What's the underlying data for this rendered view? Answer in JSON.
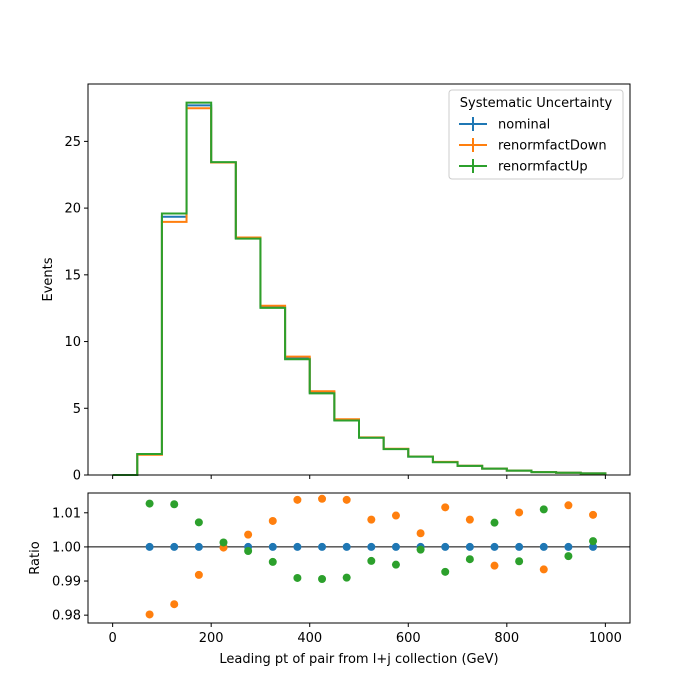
{
  "chart_data": [
    {
      "type": "step",
      "panel": "main",
      "ylabel": "Events",
      "xlim": [
        -50,
        1050
      ],
      "ylim": [
        0,
        29.3
      ],
      "yticks": [
        0,
        5,
        10,
        15,
        20,
        25
      ],
      "grid": false,
      "bin_edges": [
        0,
        50,
        100,
        150,
        200,
        250,
        300,
        350,
        400,
        450,
        500,
        550,
        600,
        650,
        700,
        750,
        800,
        850,
        900,
        950,
        1000
      ],
      "legend": {
        "title": "Systematic Uncertainty",
        "position": "top-right"
      },
      "series": [
        {
          "name": "nominal",
          "color": "#1f77b4",
          "values": [
            0.0,
            1.55,
            19.35,
            27.7,
            23.42,
            17.73,
            12.58,
            8.75,
            6.18,
            4.12,
            2.8,
            1.95,
            1.38,
            0.97,
            0.68,
            0.48,
            0.33,
            0.22,
            0.17,
            0.12
          ]
        },
        {
          "name": "renormfactDown",
          "color": "#ff7f0e",
          "values": [
            0.0,
            1.52,
            18.97,
            27.48,
            23.42,
            17.8,
            12.68,
            8.87,
            6.28,
            4.18,
            2.82,
            1.97,
            1.39,
            0.98,
            0.69,
            0.48,
            0.33,
            0.22,
            0.17,
            0.12
          ]
        },
        {
          "name": "renormfactUp",
          "color": "#2ca02c",
          "values": [
            0.0,
            1.57,
            19.6,
            27.9,
            23.45,
            17.71,
            12.52,
            8.67,
            6.12,
            4.08,
            2.79,
            1.94,
            1.38,
            0.96,
            0.68,
            0.48,
            0.33,
            0.22,
            0.17,
            0.12
          ]
        }
      ]
    },
    {
      "type": "scatter",
      "panel": "ratio",
      "xlabel": "Leading pt of pair from l+j collection (GeV)",
      "ylabel": "Ratio",
      "xlim": [
        -50,
        1050
      ],
      "ylim": [
        0.9777,
        1.0158
      ],
      "xticks": [
        0,
        200,
        400,
        600,
        800,
        1000
      ],
      "yticks": [
        0.98,
        0.99,
        1.0,
        1.01
      ],
      "ytick_labels": [
        "0.98",
        "0.99",
        "1.00",
        "1.01"
      ],
      "reference_line": 1.0,
      "x": [
        75,
        125,
        175,
        225,
        275,
        325,
        375,
        425,
        475,
        525,
        575,
        625,
        675,
        725,
        775,
        825,
        875,
        925,
        975
      ],
      "series": [
        {
          "name": "nominal",
          "color": "#1f77b4",
          "values": [
            1.0,
            1.0,
            1.0,
            1.0,
            1.0,
            1.0,
            1.0,
            1.0,
            1.0,
            1.0,
            1.0,
            1.0,
            1.0,
            1.0,
            1.0,
            1.0,
            1.0,
            1.0,
            1.0
          ]
        },
        {
          "name": "renormfactDown",
          "color": "#ff7f0e",
          "values": [
            0.9802,
            0.9832,
            0.9918,
            0.9998,
            1.0036,
            1.0076,
            1.0138,
            1.0141,
            1.0138,
            1.008,
            1.0092,
            1.004,
            1.0116,
            1.008,
            0.9945,
            1.0101,
            0.9934,
            1.0122,
            1.0094
          ]
        },
        {
          "name": "renormfactUp",
          "color": "#2ca02c",
          "values": [
            1.0127,
            1.0125,
            1.0072,
            1.0013,
            0.9988,
            0.9956,
            0.9909,
            0.9906,
            0.991,
            0.9959,
            0.9948,
            0.9992,
            0.9927,
            0.9964,
            1.0071,
            0.9958,
            1.011,
            0.9973,
            1.0017
          ]
        }
      ]
    }
  ]
}
